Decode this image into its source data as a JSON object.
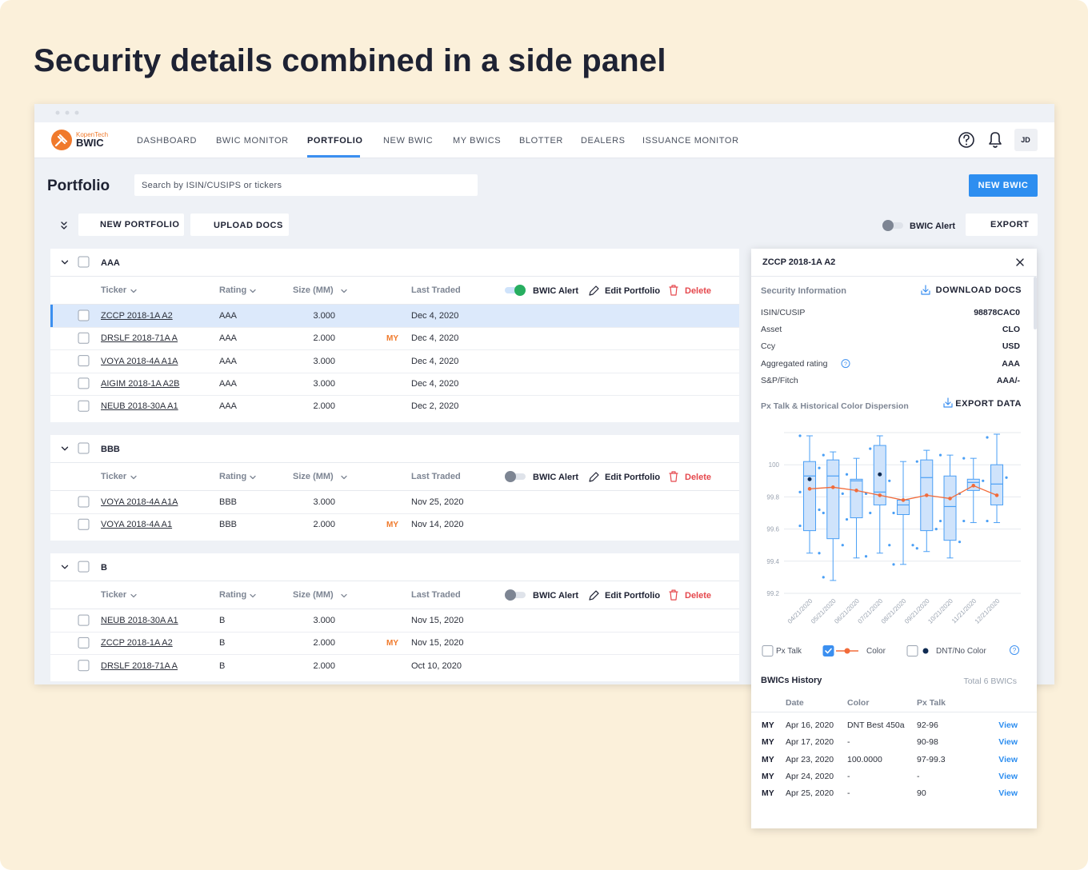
{
  "header": {
    "title": "Security details combined in a side panel"
  },
  "nav": {
    "logo_top": "KopenTech",
    "logo": "BWIC",
    "items": [
      "DASHBOARD",
      "BWIC MONITOR",
      "PORTFOLIO",
      "NEW BWIC",
      "MY BWICS",
      "BLOTTER",
      "DEALERS",
      "ISSUANCE MONITOR"
    ],
    "active": 2,
    "avatar": "JD"
  },
  "page": {
    "title": "Portfolio",
    "search_placeholder": "Search by ISIN/CUSIPS or tickers",
    "new_bwic": "NEW BWIC",
    "new_portfolio": "NEW PORTFOLIO",
    "upload_docs": "UPLOAD DOCS",
    "bwic_alert": "BWIC Alert",
    "export": "EXPORT"
  },
  "columns": [
    "Ticker",
    "Rating",
    "Size (MM)",
    "Last Traded"
  ],
  "actions": {
    "bwic_alert": "BWIC Alert",
    "edit": "Edit Portfolio",
    "delete": "Delete"
  },
  "groups": [
    {
      "name": "AAA",
      "alert": true,
      "rows": [
        {
          "ticker": "ZCCP 2018-1A A2",
          "rating": "AAA",
          "size": "3.000",
          "last_traded": "Dec 4, 2020",
          "selected": true
        },
        {
          "ticker": "DRSLF 2018-71A A",
          "rating": "AAA",
          "size": "2.000",
          "flag": "MY",
          "last_traded": "Dec 4, 2020"
        },
        {
          "ticker": "VOYA 2018-4A A1A",
          "rating": "AAA",
          "size": "3.000",
          "last_traded": "Dec 4, 2020"
        },
        {
          "ticker": "AIGIM 2018-1A A2B",
          "rating": "AAA",
          "size": "3.000",
          "last_traded": "Dec 4, 2020"
        },
        {
          "ticker": "NEUB 2018-30A A1",
          "rating": "AAA",
          "size": "2.000",
          "last_traded": "Dec 2, 2020"
        }
      ]
    },
    {
      "name": "BBB",
      "alert": false,
      "rows": [
        {
          "ticker": "VOYA 2018-4A A1A",
          "rating": "BBB",
          "size": "3.000",
          "last_traded": "Nov 25, 2020"
        },
        {
          "ticker": "VOYA 2018-4A A1",
          "rating": "BBB",
          "size": "2.000",
          "flag": "MY",
          "last_traded": "Nov 14, 2020"
        }
      ]
    },
    {
      "name": "B",
      "alert": false,
      "rows": [
        {
          "ticker": "NEUB 2018-30A A1",
          "rating": "B",
          "size": "3.000",
          "last_traded": "Nov 15, 2020"
        },
        {
          "ticker": "ZCCP 2018-1A A2",
          "rating": "B",
          "size": "2.000",
          "flag": "MY",
          "last_traded": "Nov 15, 2020"
        },
        {
          "ticker": "DRSLF 2018-71A A",
          "rating": "B",
          "size": "2.000",
          "last_traded": "Oct 10, 2020"
        }
      ]
    }
  ],
  "panel": {
    "title": "ZCCP 2018-1A A2",
    "section": "Security Information",
    "download": "DOWNLOAD DOCS",
    "fields": [
      {
        "label": "ISIN/CUSIP",
        "value": "98878CAC0"
      },
      {
        "label": "Asset",
        "value": "CLO"
      },
      {
        "label": "Ccy",
        "value": "USD"
      },
      {
        "label": "Aggregated rating",
        "value": "AAA",
        "help": true
      },
      {
        "label": "S&P/Fitch",
        "value": "AAA/-"
      }
    ],
    "export_data": "EXPORT DATA",
    "history": {
      "title": "BWICs History",
      "total": "Total 6 BWICs",
      "columns": [
        "Date",
        "Color",
        "Px Talk"
      ],
      "rows": [
        {
          "tag": "MY",
          "date": "Apr 16, 2020",
          "color": "DNT Best 450a",
          "px_talk": "92-96",
          "action": "View"
        },
        {
          "tag": "MY",
          "date": "Apr 17, 2020",
          "color": "-",
          "px_talk": "90-98",
          "action": "View"
        },
        {
          "tag": "MY",
          "date": "Apr 23, 2020",
          "color": "100.0000",
          "px_talk": "97-99.3",
          "action": "View"
        },
        {
          "tag": "MY",
          "date": "Apr 24, 2020",
          "color": "-",
          "px_talk": "-",
          "action": "View"
        },
        {
          "tag": "MY",
          "date": "Apr 25, 2020",
          "color": "-",
          "px_talk": "90",
          "action": "View"
        }
      ]
    }
  },
  "chart_data": {
    "type": "box",
    "title": "Px Talk & Historical Color Dispersion",
    "categories": [
      "04/21/2020",
      "05/21/2020",
      "06/21/2020",
      "07/21/2020",
      "08/21/2020",
      "09/21/2020",
      "10/21/2020",
      "11/21/2020",
      "12/21/2020"
    ],
    "ylim": [
      99.2,
      100.2
    ],
    "yticks": [
      99.2,
      99.4,
      99.6,
      99.8,
      100
    ],
    "grid": true,
    "box_color": "#4a9ff5",
    "boxes": [
      {
        "min": 99.45,
        "q1": 99.59,
        "median": 99.93,
        "q3": 100.02,
        "max": 100.18,
        "points": [
          100.18,
          99.98,
          99.83,
          99.72,
          99.62,
          99.45
        ]
      },
      {
        "min": 99.28,
        "q1": 99.54,
        "median": 99.93,
        "q3": 100.03,
        "max": 100.08,
        "points": [
          100.06,
          99.82,
          99.7,
          99.5,
          99.3
        ]
      },
      {
        "min": 99.42,
        "q1": 99.67,
        "median": 99.9,
        "q3": 99.91,
        "max": 100.04,
        "points": [
          99.94,
          99.82,
          99.66,
          99.43
        ]
      },
      {
        "min": 99.45,
        "q1": 99.75,
        "median": 99.83,
        "q3": 100.12,
        "max": 100.18,
        "points": [
          100.1,
          99.9,
          99.7,
          99.5
        ]
      },
      {
        "min": 99.38,
        "q1": 99.69,
        "median": 99.75,
        "q3": 99.78,
        "max": 100.02,
        "points": [
          99.7,
          99.5,
          99.38
        ]
      },
      {
        "min": 99.46,
        "q1": 99.59,
        "median": 99.92,
        "q3": 100.03,
        "max": 100.09,
        "points": [
          100.02,
          99.6,
          99.48
        ]
      },
      {
        "min": 99.42,
        "q1": 99.53,
        "median": 99.74,
        "q3": 99.93,
        "max": 100.06,
        "points": [
          100.06,
          99.82,
          99.65,
          99.52
        ]
      },
      {
        "min": 99.64,
        "q1": 99.84,
        "median": 99.89,
        "q3": 99.91,
        "max": 100.04,
        "points": [
          100.04,
          99.9,
          99.65
        ]
      },
      {
        "min": 99.64,
        "q1": 99.75,
        "median": 99.88,
        "q3": 100.0,
        "max": 100.19,
        "points": [
          100.17,
          99.92,
          99.65
        ]
      }
    ],
    "series": [
      {
        "name": "Px Talk",
        "checked": false
      },
      {
        "name": "Color",
        "color": "#f26b3a",
        "checked": true,
        "values": [
          99.85,
          99.86,
          99.84,
          99.81,
          99.78,
          99.81,
          99.79,
          99.87,
          99.81
        ]
      },
      {
        "name": "DNT/No Color",
        "color": "#0f2b52",
        "checked": false,
        "values": [
          99.91,
          null,
          null,
          99.94,
          null,
          null,
          null,
          null,
          null
        ]
      }
    ]
  }
}
